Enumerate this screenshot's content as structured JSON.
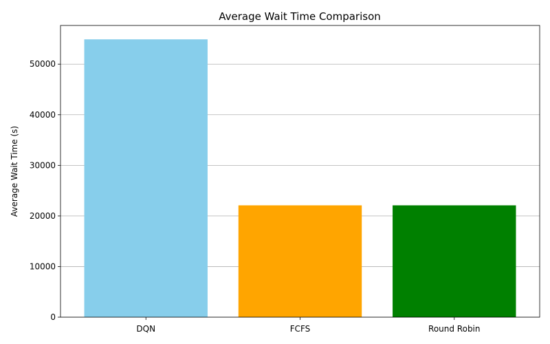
{
  "chart_data": {
    "type": "bar",
    "title": "Average Wait Time Comparison",
    "xlabel": "",
    "ylabel": "Average Wait Time (s)",
    "categories": [
      "DQN",
      "FCFS",
      "Round Robin"
    ],
    "values": [
      54900,
      22100,
      22100
    ],
    "colors": [
      "#87CEEB",
      "#FFA500",
      "#008000"
    ],
    "ylim": [
      0,
      57645
    ],
    "yticks": [
      0,
      10000,
      20000,
      30000,
      40000,
      50000
    ],
    "grid": "y-axis"
  }
}
